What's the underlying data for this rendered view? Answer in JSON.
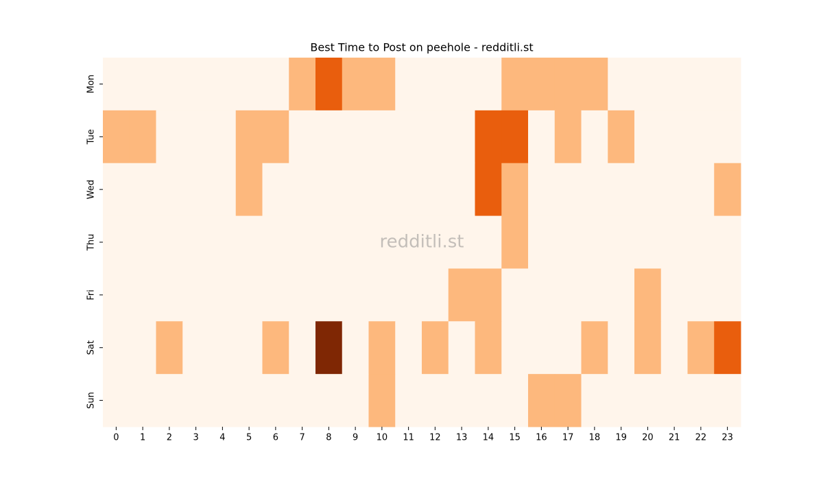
{
  "chart_data": {
    "type": "heatmap",
    "title": "Best Time to Post on peehole - redditli.st",
    "watermark": "redditli.st",
    "x": [
      0,
      1,
      2,
      3,
      4,
      5,
      6,
      7,
      8,
      9,
      10,
      11,
      12,
      13,
      14,
      15,
      16,
      17,
      18,
      19,
      20,
      21,
      22,
      23
    ],
    "y": [
      "Mon",
      "Tue",
      "Wed",
      "Thu",
      "Fri",
      "Sat",
      "Sun"
    ],
    "values": [
      [
        0,
        0,
        0,
        0,
        0,
        0,
        0,
        1,
        2,
        1,
        1,
        0,
        0,
        0,
        0,
        1,
        1,
        1,
        1,
        0,
        0,
        0,
        0,
        0
      ],
      [
        1,
        1,
        0,
        0,
        0,
        1,
        1,
        0,
        0,
        0,
        0,
        0,
        0,
        0,
        2,
        2,
        0,
        1,
        0,
        1,
        0,
        0,
        0,
        0
      ],
      [
        0,
        0,
        0,
        0,
        0,
        1,
        0,
        0,
        0,
        0,
        0,
        0,
        0,
        0,
        2,
        1,
        0,
        0,
        0,
        0,
        0,
        0,
        0,
        1
      ],
      [
        0,
        0,
        0,
        0,
        0,
        0,
        0,
        0,
        0,
        0,
        0,
        0,
        0,
        0,
        0,
        1,
        0,
        0,
        0,
        0,
        0,
        0,
        0,
        0
      ],
      [
        0,
        0,
        0,
        0,
        0,
        0,
        0,
        0,
        0,
        0,
        0,
        0,
        0,
        1,
        1,
        0,
        0,
        0,
        0,
        0,
        1,
        0,
        0,
        0
      ],
      [
        0,
        0,
        1,
        0,
        0,
        0,
        1,
        0,
        3,
        0,
        1,
        0,
        1,
        0,
        1,
        0,
        0,
        0,
        1,
        0,
        1,
        0,
        1,
        2
      ],
      [
        0,
        0,
        0,
        0,
        0,
        0,
        0,
        0,
        0,
        0,
        1,
        0,
        0,
        0,
        0,
        0,
        1,
        1,
        0,
        0,
        0,
        0,
        0,
        0
      ]
    ],
    "colors": [
      "#fff5eb",
      "#fdb87d",
      "#e95e0d",
      "#7f2704"
    ]
  }
}
